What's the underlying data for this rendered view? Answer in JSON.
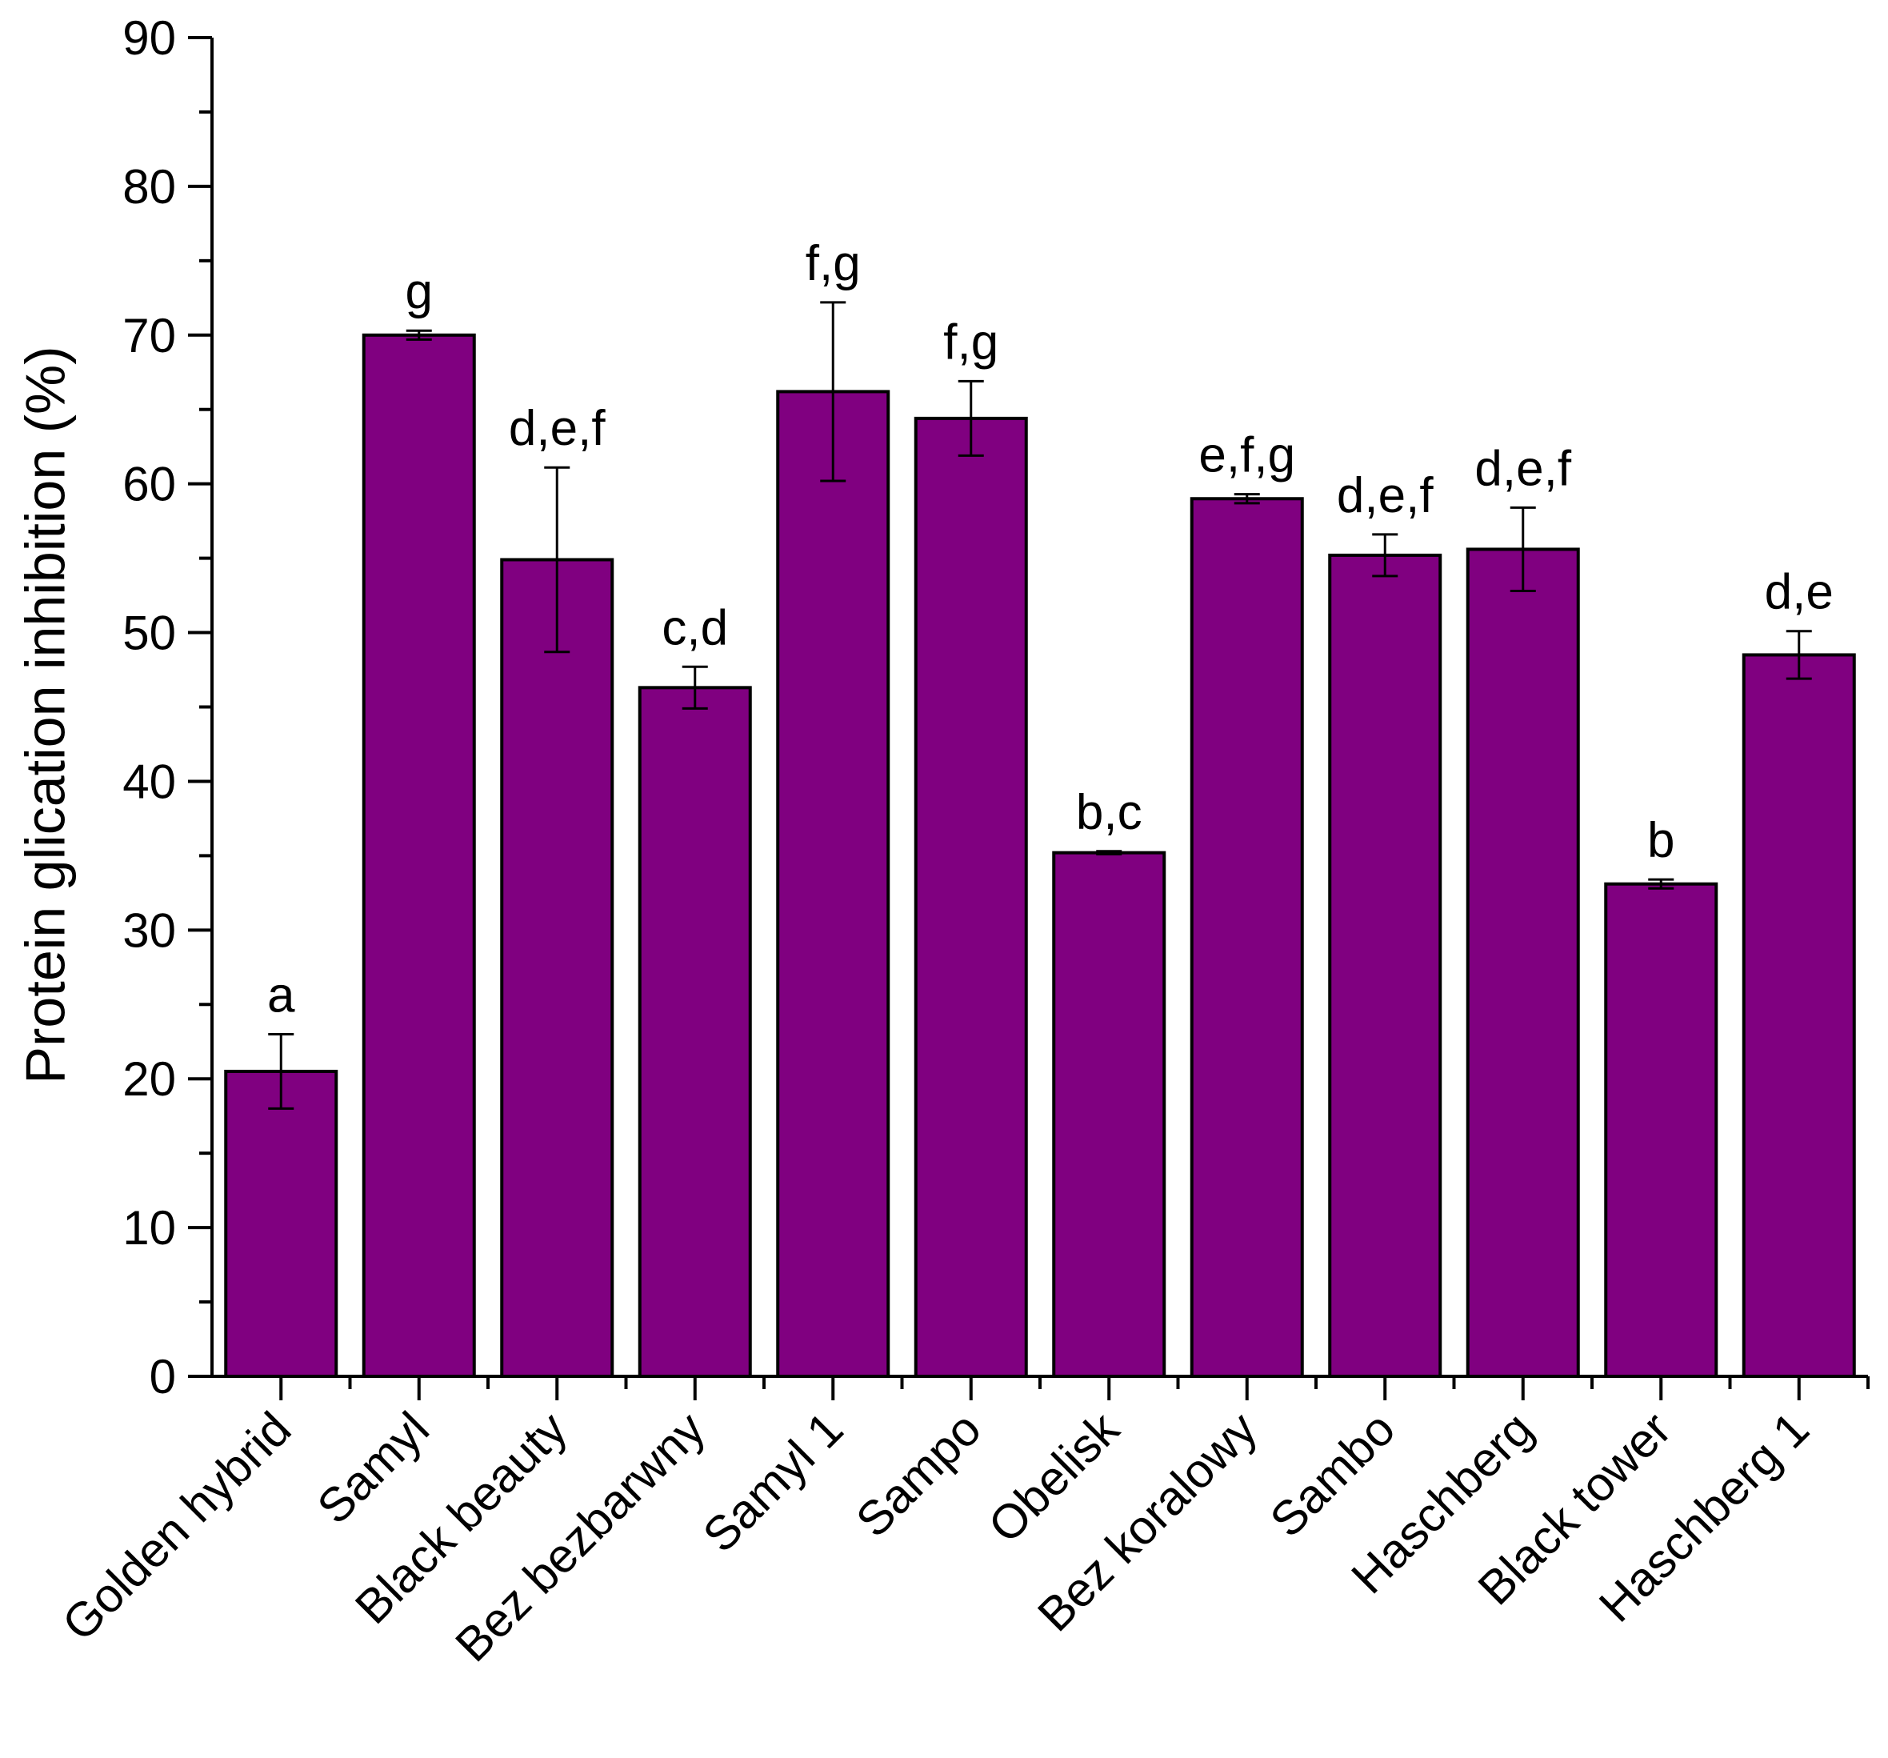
{
  "chart_data": {
    "type": "bar",
    "title": "",
    "xlabel": "",
    "ylabel": "Protein glication inhibition (%)",
    "ylim": [
      0,
      90
    ],
    "yticks": [
      0,
      10,
      20,
      30,
      40,
      50,
      60,
      70,
      80,
      90
    ],
    "bar_color": "#800080",
    "categories": [
      "Golden hybrid",
      "Samyl",
      "Black beauty",
      "Bez bezbarwny",
      "Samyl 1",
      "Sampo",
      "Obelisk",
      "Bez koralowy",
      "Sambo",
      "Haschberg",
      "Black tower",
      "Haschberg 1"
    ],
    "values": [
      20.5,
      70.0,
      54.9,
      46.3,
      66.2,
      64.4,
      35.2,
      59.0,
      55.2,
      55.6,
      33.1,
      48.5
    ],
    "errors": [
      2.5,
      0.3,
      6.2,
      1.4,
      6.0,
      2.5,
      0.1,
      0.3,
      1.4,
      2.8,
      0.3,
      1.6
    ],
    "significance": [
      "a",
      "g",
      "d,e,f",
      "c,d",
      "f,g",
      "f,g",
      "b,c",
      "e,f,g",
      "d,e,f",
      "d,e,f",
      "b",
      "d,e"
    ]
  }
}
